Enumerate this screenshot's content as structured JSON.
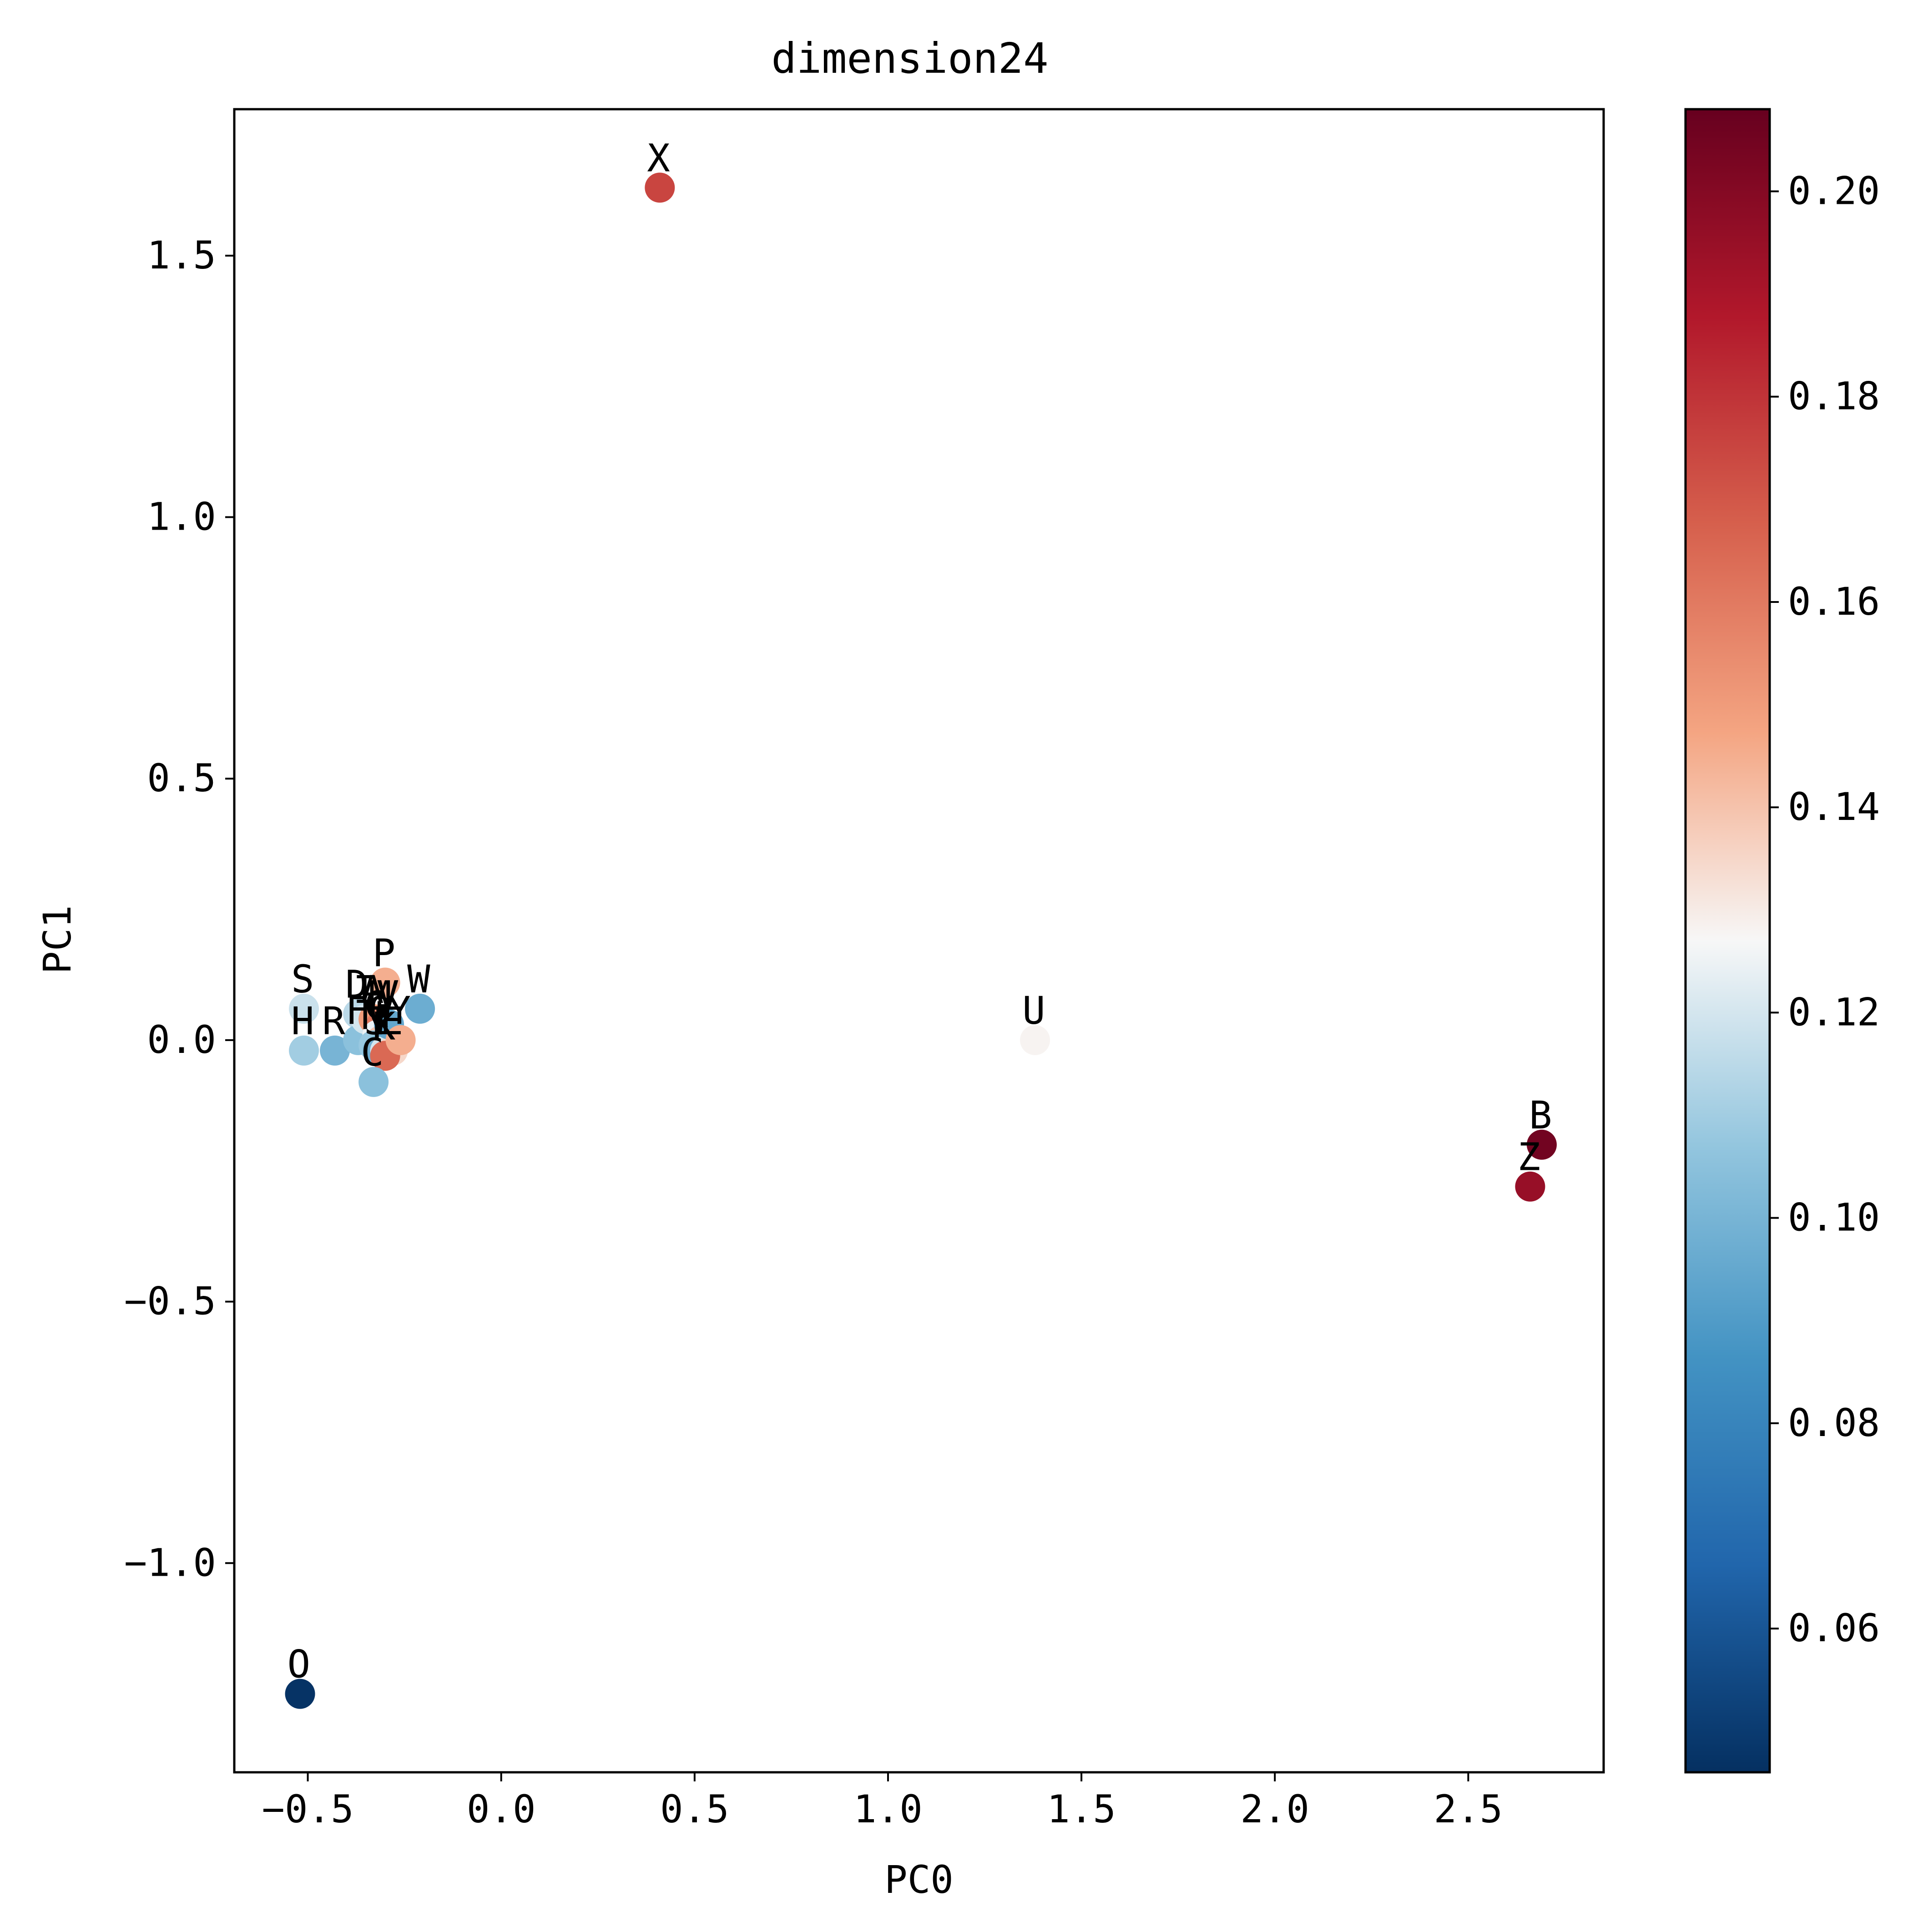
{
  "chart_data": {
    "type": "scatter",
    "title": "dimension24",
    "xlabel": "PC0",
    "ylabel": "PC1",
    "xlim": [
      -0.69,
      2.85
    ],
    "ylim": [
      -1.4,
      1.78
    ],
    "x_ticks": [
      -0.5,
      0.0,
      0.5,
      1.0,
      1.5,
      2.0,
      2.5
    ],
    "x_tick_labels": [
      "−0.5",
      "0.0",
      "0.5",
      "1.0",
      "1.5",
      "2.0",
      "2.5"
    ],
    "y_ticks": [
      -1.0,
      -0.5,
      0.0,
      0.5,
      1.0,
      1.5
    ],
    "y_tick_labels": [
      "−1.0",
      "−0.5",
      "0.0",
      "0.5",
      "1.0",
      "1.5"
    ],
    "grid": false,
    "colorbar": {
      "colormap": "RdBu_r",
      "range": [
        0.046,
        0.208
      ],
      "ticks": [
        0.06,
        0.08,
        0.1,
        0.12,
        0.14,
        0.16,
        0.18,
        0.2
      ],
      "tick_labels": [
        "0.06",
        "0.08",
        "0.10",
        "0.12",
        "0.14",
        "0.16",
        "0.18",
        "0.20"
      ]
    },
    "points": [
      {
        "label": "X",
        "x": 0.41,
        "y": 1.63,
        "value": 0.175
      },
      {
        "label": "U",
        "x": 1.38,
        "y": 0.0,
        "value": 0.128
      },
      {
        "label": "B",
        "x": 2.69,
        "y": -0.2,
        "value": 0.205
      },
      {
        "label": "Z",
        "x": 2.66,
        "y": -0.28,
        "value": 0.195
      },
      {
        "label": "O",
        "x": -0.52,
        "y": -1.25,
        "value": 0.047
      },
      {
        "label": "S",
        "x": -0.51,
        "y": 0.06,
        "value": 0.118
      },
      {
        "label": "H",
        "x": -0.51,
        "y": -0.02,
        "value": 0.11
      },
      {
        "label": "R",
        "x": -0.43,
        "y": -0.02,
        "value": 0.1
      },
      {
        "label": "D",
        "x": -0.37,
        "y": 0.05,
        "value": 0.115
      },
      {
        "label": "F",
        "x": -0.37,
        "y": 0.0,
        "value": 0.105
      },
      {
        "label": "I",
        "x": -0.35,
        "y": 0.04,
        "value": 0.12
      },
      {
        "label": "A",
        "x": -0.33,
        "y": 0.04,
        "value": 0.15
      },
      {
        "label": "M",
        "x": -0.31,
        "y": 0.03,
        "value": 0.16
      },
      {
        "label": "G",
        "x": -0.32,
        "y": 0.01,
        "value": 0.125
      },
      {
        "label": "Q",
        "x": -0.31,
        "y": 0.0,
        "value": 0.14
      },
      {
        "label": "N",
        "x": -0.33,
        "y": -0.01,
        "value": 0.108
      },
      {
        "label": "J",
        "x": -0.32,
        "y": -0.02,
        "value": 0.103
      },
      {
        "label": "T",
        "x": -0.31,
        "y": -0.02,
        "value": 0.098
      },
      {
        "label": "L",
        "x": -0.3,
        "y": -0.02,
        "value": 0.12
      },
      {
        "label": "E",
        "x": -0.28,
        "y": -0.02,
        "value": 0.135
      },
      {
        "label": "K",
        "x": -0.3,
        "y": -0.03,
        "value": 0.165
      },
      {
        "label": "C",
        "x": -0.33,
        "y": -0.08,
        "value": 0.105
      },
      {
        "label": "V",
        "x": -0.29,
        "y": 0.03,
        "value": 0.095
      },
      {
        "label": "Y",
        "x": -0.26,
        "y": 0.0,
        "value": 0.145
      },
      {
        "label": "P",
        "x": -0.3,
        "y": 0.11,
        "value": 0.145
      },
      {
        "label": "W",
        "x": -0.21,
        "y": 0.06,
        "value": 0.097
      }
    ]
  }
}
